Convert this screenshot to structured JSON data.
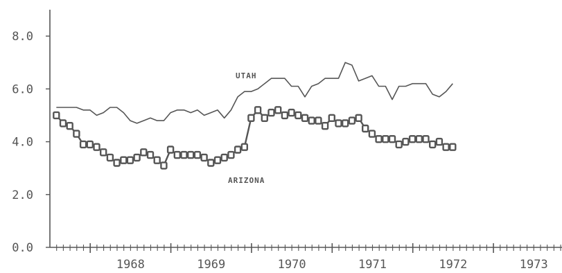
{
  "chart_data": {
    "type": "line",
    "title": "",
    "xlabel": "",
    "ylabel": "",
    "ylim": [
      0,
      9
    ],
    "xlim": [
      1967.5,
      1973.85
    ],
    "grid": false,
    "legend": "none",
    "y_ticks": [
      "0.0",
      "2.0",
      "4.0",
      "6.0",
      "8.0"
    ],
    "y_tick_values": [
      0,
      2,
      4,
      6,
      8
    ],
    "x_ticks": [
      "1968",
      "1969",
      "1970",
      "1971",
      "1972",
      "1973"
    ],
    "x_tick_values": [
      1968.0,
      1969.0,
      1970.0,
      1971.0,
      1972.0,
      1973.0
    ],
    "months_per_year": 12,
    "series": [
      {
        "name": "UTAH",
        "color": "#555555",
        "marker": "none",
        "start": 1967.58,
        "step": 0.0833,
        "values": [
          5.3,
          5.3,
          5.3,
          5.3,
          5.2,
          5.2,
          5.0,
          5.1,
          5.3,
          5.3,
          5.1,
          4.8,
          4.7,
          4.8,
          4.9,
          4.8,
          4.8,
          5.1,
          5.2,
          5.2,
          5.1,
          5.2,
          5.0,
          5.1,
          5.2,
          4.9,
          5.2,
          5.7,
          5.9,
          5.9,
          6.0,
          6.2,
          6.4,
          6.4,
          6.4,
          6.1,
          6.1,
          5.7,
          6.1,
          6.2,
          6.4,
          6.4,
          6.4,
          7.0,
          6.9,
          6.3,
          6.4,
          6.5,
          6.1,
          6.1,
          5.6,
          6.1,
          6.1,
          6.2,
          6.2,
          6.2,
          5.8,
          5.7,
          5.9,
          6.2
        ]
      },
      {
        "name": "ARIZONA",
        "color": "#555555",
        "marker": "square",
        "start": 1967.58,
        "step": 0.0833,
        "values": [
          5.0,
          4.7,
          4.6,
          4.3,
          3.9,
          3.9,
          3.8,
          3.6,
          3.4,
          3.2,
          3.3,
          3.3,
          3.4,
          3.6,
          3.5,
          3.3,
          3.1,
          3.7,
          3.5,
          3.5,
          3.5,
          3.5,
          3.4,
          3.2,
          3.3,
          3.4,
          3.5,
          3.7,
          3.8,
          4.9,
          5.2,
          4.9,
          5.1,
          5.2,
          5.0,
          5.1,
          5.0,
          4.9,
          4.8,
          4.8,
          4.6,
          4.9,
          4.7,
          4.7,
          4.8,
          4.9,
          4.5,
          4.3,
          4.1,
          4.1,
          4.1,
          3.9,
          4.0,
          4.1,
          4.1,
          4.1,
          3.9,
          4.0,
          3.8,
          3.8
        ]
      }
    ]
  },
  "annotations": {
    "utah": "UTAH",
    "arizona": "ARIZONA"
  }
}
